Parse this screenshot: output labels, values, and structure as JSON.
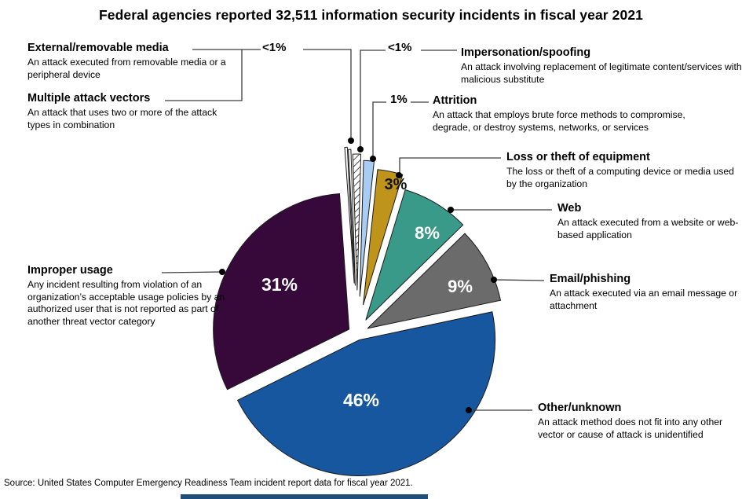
{
  "title": "Federal agencies reported 32,511 information security incidents in fiscal year 2021",
  "source": "Source: United States Computer Emergency Readiness Team incident report data for fiscal year 2021.",
  "colors": {
    "other_unknown_blue": "#17579f",
    "improper_usage_purple": "#36093a",
    "email_phishing_gray": "#6b6b6b",
    "web_teal": "#3a9a89",
    "loss_theft_gold": "#bf941b",
    "attrition_light_blue": "#a9cdf2",
    "hatch_background": "#ffffff",
    "leader_line": "#3d3d3d",
    "bottom_bar_blue": "#1f4e79"
  },
  "chart_data": {
    "type": "pie",
    "title": "Federal agencies reported 32,511 information security incidents in fiscal year 2021",
    "total_incidents": "32,511",
    "fiscal_year": "2021",
    "legend_position": "callout-labels",
    "slices": [
      {
        "id": "external",
        "label": "External/removable media",
        "pct_label": "<1%",
        "value": 0.3,
        "description": "An attack executed from removable media or a peripheral device",
        "color": "#ffffff",
        "hatch": false,
        "text_color": "#000000"
      },
      {
        "id": "multiple",
        "label": "Multiple attack vectors",
        "pct_label": "<1%",
        "value": 0.3,
        "description": "An attack that uses two or more of the attack types in combination",
        "color": "#ffffff",
        "hatch": false,
        "text_color": "#000000"
      },
      {
        "id": "impersonation",
        "label": "Impersonation/spoofing",
        "pct_label": "<1%",
        "value": 0.95,
        "description": "An attack involving replacement of legitimate content/services with malicious substitute",
        "color": "#ffffff",
        "hatch": true,
        "text_color": "#000000"
      },
      {
        "id": "attrition",
        "label": "Attrition",
        "pct_label": "1%",
        "value": 1.25,
        "description": "An attack that employs brute force methods to compromise, degrade, or destroy systems, networks, or services",
        "color": "#a9cdf2",
        "hatch": false,
        "text_color": "#000000"
      },
      {
        "id": "loss",
        "label": "Loss or theft of equipment",
        "pct_label": "3%",
        "value": 3,
        "description": "The loss or theft of a computing device or media used by the organization",
        "color": "#bf941b",
        "hatch": false,
        "text_color": "#111111"
      },
      {
        "id": "web",
        "label": "Web",
        "pct_label": "8%",
        "value": 8,
        "description": "An attack executed from a website or web-based application",
        "color": "#3a9a89",
        "hatch": false,
        "text_color": "#ffffff"
      },
      {
        "id": "email",
        "label": "Email/phishing",
        "pct_label": "9%",
        "value": 9,
        "description": "An attack executed via an email message or attachment",
        "color": "#6b6b6b",
        "hatch": false,
        "text_color": "#ffffff"
      },
      {
        "id": "other",
        "label": "Other/unknown",
        "pct_label": "46%",
        "value": 46,
        "description": "An attack method does not fit into any other vector or cause of attack is unidentified",
        "color": "#17579f",
        "hatch": false,
        "text_color": "#ffffff"
      },
      {
        "id": "improper",
        "label": "Improper usage",
        "pct_label": "31%",
        "value": 31.2,
        "description": "Any incident resulting from violation of an organization’s acceptable usage policies by an authorized user that is not reported as part of another threat vector category",
        "color": "#36093a",
        "hatch": false,
        "text_color": "#ffffff"
      }
    ]
  }
}
